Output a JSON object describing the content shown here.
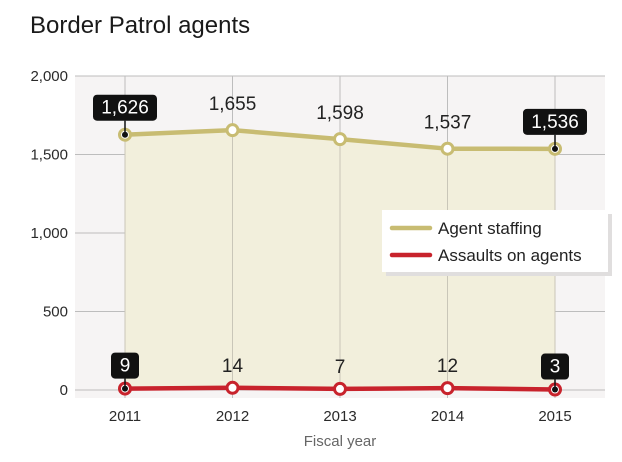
{
  "chart_data": {
    "type": "line",
    "title": "Border Patrol agents",
    "xlabel": "Fiscal year",
    "ylabel": "",
    "categories": [
      "2011",
      "2012",
      "2013",
      "2014",
      "2015"
    ],
    "ylim": [
      0,
      2000
    ],
    "yticks": [
      0,
      500,
      1000,
      1500,
      2000
    ],
    "ytick_labels": [
      "0",
      "500",
      "1,000",
      "1,500",
      "2,000"
    ],
    "grid": true,
    "legend_position": "right",
    "series": [
      {
        "name": "Agent staffing",
        "color": "#c8bc72",
        "fill": "#f2efdc",
        "values": [
          1626,
          1655,
          1598,
          1537,
          1536
        ],
        "labels": [
          "1,626",
          "1,655",
          "1,598",
          "1,537",
          "1,536"
        ],
        "highlighted": [
          true,
          false,
          false,
          false,
          true
        ]
      },
      {
        "name": "Assaults on agents",
        "color": "#c8232c",
        "values": [
          9,
          14,
          7,
          12,
          3
        ],
        "labels": [
          "9",
          "14",
          "7",
          "12",
          "3"
        ],
        "highlighted": [
          true,
          false,
          false,
          false,
          true
        ]
      }
    ]
  }
}
